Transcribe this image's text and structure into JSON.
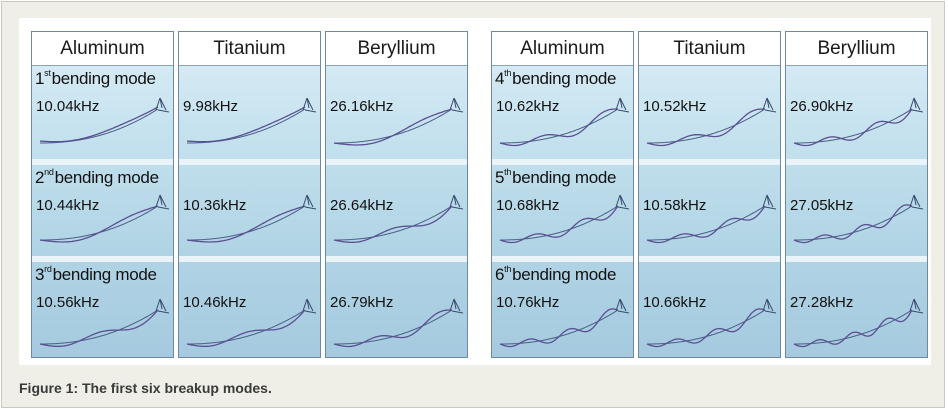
{
  "caption": "Figure 1: The first six breakup modes.",
  "panels": [
    {
      "columns": [
        "Aluminum",
        "Titanium",
        "Beryllium"
      ],
      "rows": [
        {
          "mode_num": "1",
          "mode_sup": "st",
          "mode_text": "bending mode",
          "freqs": [
            "10.04kHz",
            "9.98kHz",
            "26.16kHz"
          ],
          "waves": [
            0,
            0,
            1
          ]
        },
        {
          "mode_num": "2",
          "mode_sup": "nd",
          "mode_text": "bending mode",
          "freqs": [
            "10.44kHz",
            "10.36kHz",
            "26.64kHz"
          ],
          "waves": [
            1,
            1,
            1.5
          ]
        },
        {
          "mode_num": "3",
          "mode_sup": "rd",
          "mode_text": "bending mode",
          "freqs": [
            "10.56kHz",
            "10.46kHz",
            "26.79kHz"
          ],
          "waves": [
            1.5,
            1.5,
            2
          ]
        }
      ]
    },
    {
      "columns": [
        "Aluminum",
        "Titanium",
        "Beryllium"
      ],
      "rows": [
        {
          "mode_num": "4",
          "mode_sup": "th",
          "mode_text": "bending mode",
          "freqs": [
            "10.62kHz",
            "10.52kHz",
            "26.90kHz"
          ],
          "waves": [
            2,
            2,
            2.5
          ]
        },
        {
          "mode_num": "5",
          "mode_sup": "th",
          "mode_text": "bending mode",
          "freqs": [
            "10.68kHz",
            "10.58kHz",
            "27.05kHz"
          ],
          "waves": [
            2.5,
            2.5,
            3
          ]
        },
        {
          "mode_num": "6",
          "mode_sup": "th",
          "mode_text": "bending mode",
          "freqs": [
            "10.76kHz",
            "10.66kHz",
            "27.28kHz"
          ],
          "waves": [
            3,
            3,
            3.5
          ]
        }
      ]
    }
  ]
}
